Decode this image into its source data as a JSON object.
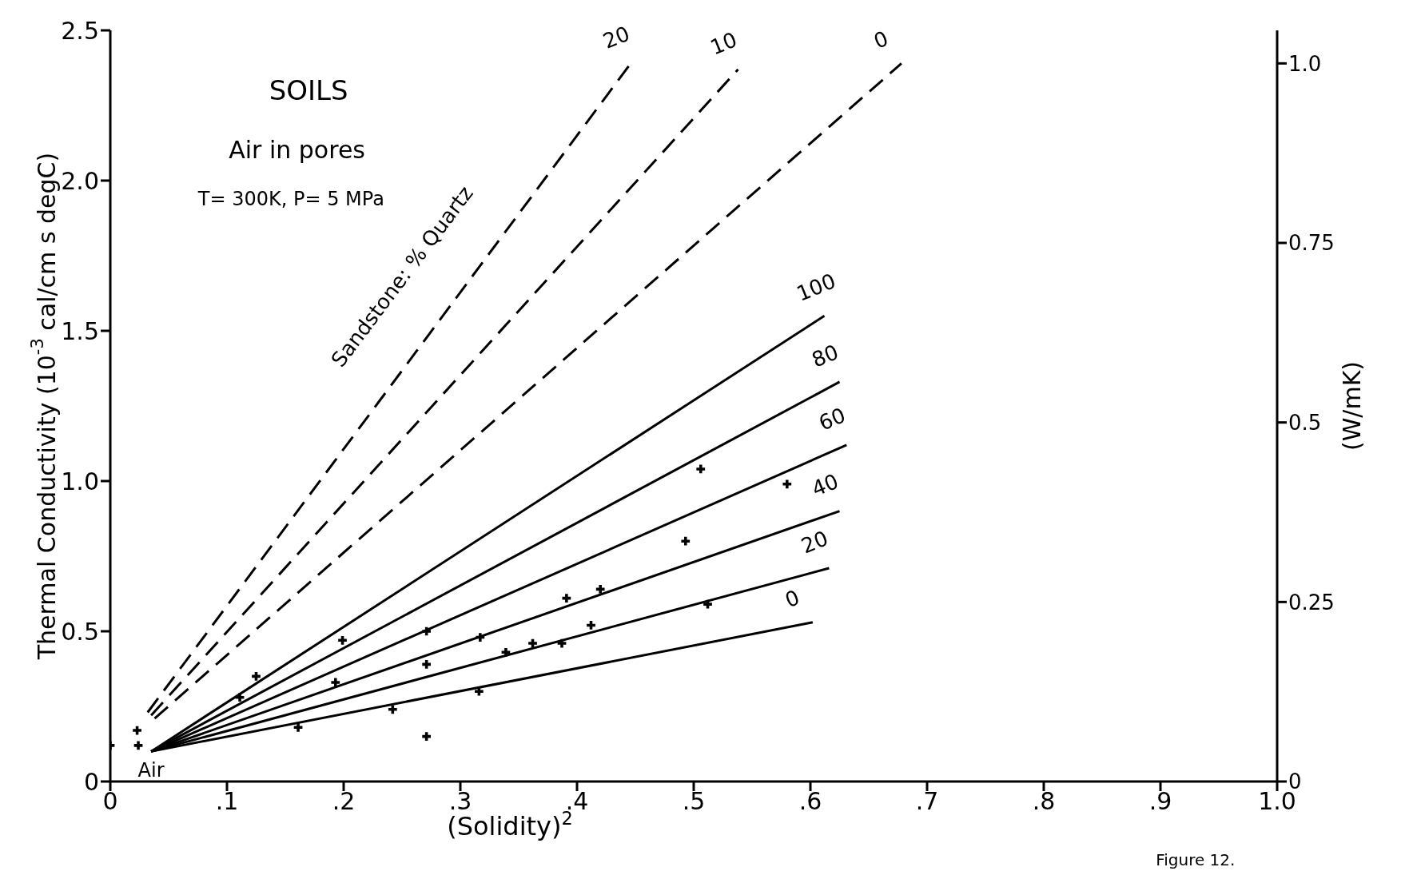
{
  "chart_data": {
    "type": "line",
    "xlabel": "(Solidity)$^{2}$",
    "ylabel": "Thermal Conductivity (10$^{-3}$ cal/cm s degC)",
    "y2label": "(W/mK)",
    "xlim": [
      0,
      1
    ],
    "xticks": [
      {
        "value": 0,
        "label": "0"
      },
      {
        "value": 0.1,
        "label": ".1"
      },
      {
        "value": 0.2,
        "label": ".2"
      },
      {
        "value": 0.3,
        "label": ".3"
      },
      {
        "value": 0.4,
        "label": ".4"
      },
      {
        "value": 0.5,
        "label": ".5"
      },
      {
        "value": 0.6,
        "label": ".6"
      },
      {
        "value": 0.7,
        "label": ".7"
      },
      {
        "value": 0.8,
        "label": ".8"
      },
      {
        "value": 0.9,
        "label": ".9"
      },
      {
        "value": 1.0,
        "label": "1.0"
      }
    ],
    "ylim": [
      0,
      2.5
    ],
    "yticks": [
      {
        "value": 0,
        "label": "0"
      },
      {
        "value": 0.5,
        "label": "0.5"
      },
      {
        "value": 1.0,
        "label": "1.0"
      },
      {
        "value": 1.5,
        "label": "1.5"
      },
      {
        "value": 2.0,
        "label": "2.0"
      },
      {
        "value": 2.5,
        "label": "2.5"
      }
    ],
    "y2lim": [
      0,
      1.046
    ],
    "y2ticks": [
      {
        "value": 0,
        "label": "0"
      },
      {
        "value": 0.25,
        "label": "0.25"
      },
      {
        "value": 0.5,
        "label": "0.5"
      },
      {
        "value": 0.75,
        "label": "0.75"
      },
      {
        "value": 1.0,
        "label": "1.0"
      }
    ],
    "series": [
      {
        "name": "20",
        "line_style": "dashed",
        "color": "#000000",
        "x": [
          0.032,
          0.446
        ],
        "values": [
          0.23,
          2.39
        ]
      },
      {
        "name": "10",
        "line_style": "dashed",
        "color": "#000000",
        "x": [
          0.035,
          0.538
        ],
        "values": [
          0.22,
          2.37
        ]
      },
      {
        "name": "0",
        "line_style": "dashed",
        "color": "#000000",
        "x": [
          0.038,
          0.678
        ],
        "values": [
          0.21,
          2.39
        ]
      },
      {
        "name": "100",
        "line_style": "solid",
        "color": "#000000",
        "x": [
          0.035,
          0.612
        ],
        "values": [
          0.1,
          1.55
        ]
      },
      {
        "name": "80",
        "line_style": "solid",
        "color": "#000000",
        "x": [
          0.035,
          0.625
        ],
        "values": [
          0.1,
          1.33
        ]
      },
      {
        "name": "60",
        "line_style": "solid",
        "color": "#000000",
        "x": [
          0.035,
          0.631
        ],
        "values": [
          0.1,
          1.12
        ]
      },
      {
        "name": "40",
        "line_style": "solid",
        "color": "#000000",
        "x": [
          0.035,
          0.625
        ],
        "values": [
          0.1,
          0.9
        ]
      },
      {
        "name": "20",
        "line_style": "solid",
        "color": "#000000",
        "x": [
          0.035,
          0.616
        ],
        "values": [
          0.1,
          0.71
        ]
      },
      {
        "name": "0",
        "line_style": "solid",
        "color": "#000000",
        "x": [
          0.035,
          0.602
        ],
        "values": [
          0.1,
          0.53
        ]
      },
      {
        "type": "scatter",
        "marker": "cross",
        "color": "#000000",
        "x": [
          0.0,
          0.023,
          0.024,
          0.111,
          0.125,
          0.161,
          0.193,
          0.199,
          0.242,
          0.271,
          0.271,
          0.271,
          0.316,
          0.317,
          0.339,
          0.362,
          0.387,
          0.391,
          0.412,
          0.42,
          0.493,
          0.506,
          0.512,
          0.58
        ],
        "values": [
          0.12,
          0.17,
          0.12,
          0.28,
          0.35,
          0.18,
          0.33,
          0.47,
          0.24,
          0.39,
          0.5,
          0.15,
          0.3,
          0.48,
          0.43,
          0.46,
          0.46,
          0.61,
          0.52,
          0.64,
          0.8,
          1.04,
          0.59,
          0.99
        ]
      }
    ],
    "annotations": [
      "SOILS",
      "Air in pores",
      "T= 300K, P= 5 MPa",
      "Sandstone: % Quartz",
      "Air",
      "Figure 12."
    ]
  }
}
